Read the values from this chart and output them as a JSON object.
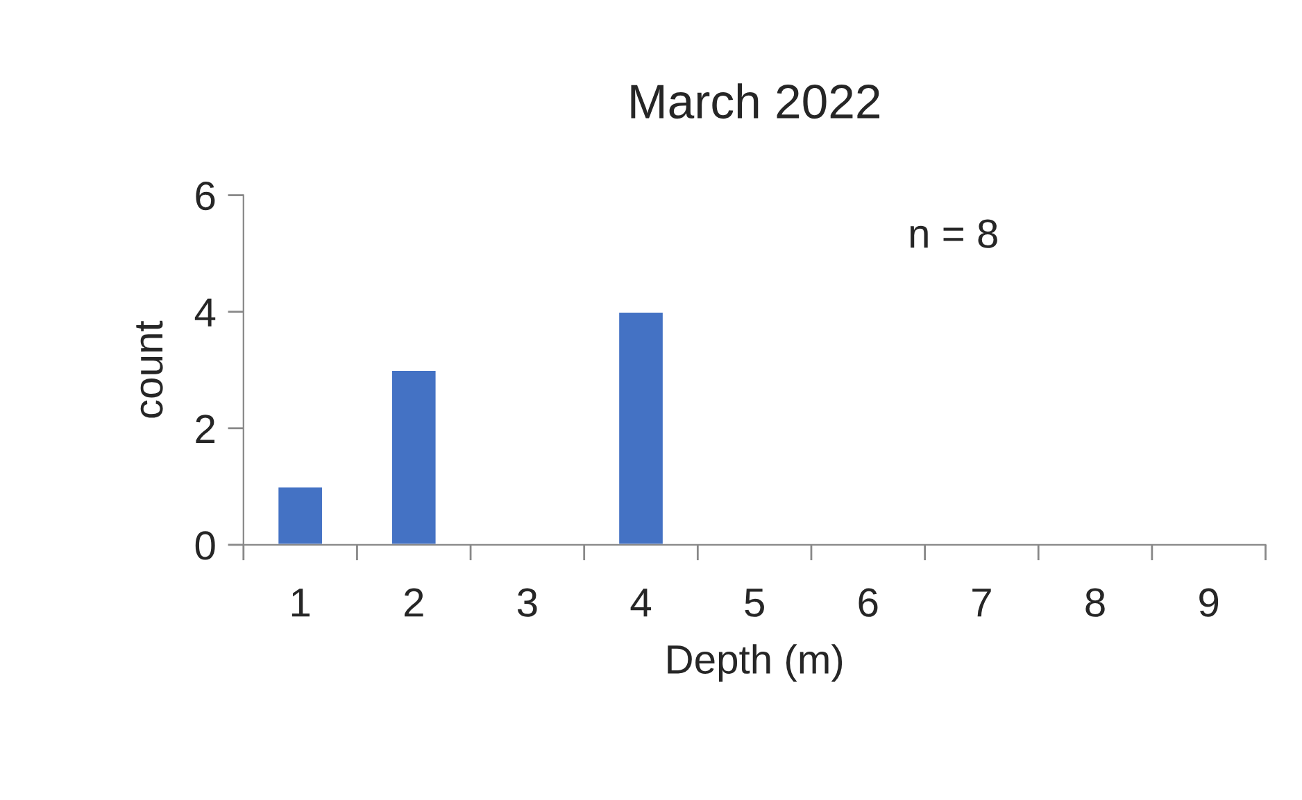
{
  "chart_data": {
    "type": "bar",
    "title": "March 2022",
    "xlabel": "Depth (m)",
    "ylabel": "count",
    "categories": [
      "1",
      "2",
      "3",
      "4",
      "5",
      "6",
      "7",
      "8",
      "9"
    ],
    "values": [
      1,
      3,
      0,
      4,
      0,
      0,
      0,
      0,
      0
    ],
    "color": "#4472c4",
    "ylim": [
      0,
      6
    ],
    "yticks": [
      0,
      2,
      4,
      6
    ],
    "grid": false,
    "legend": false,
    "annotations": [
      "n = 8"
    ]
  }
}
